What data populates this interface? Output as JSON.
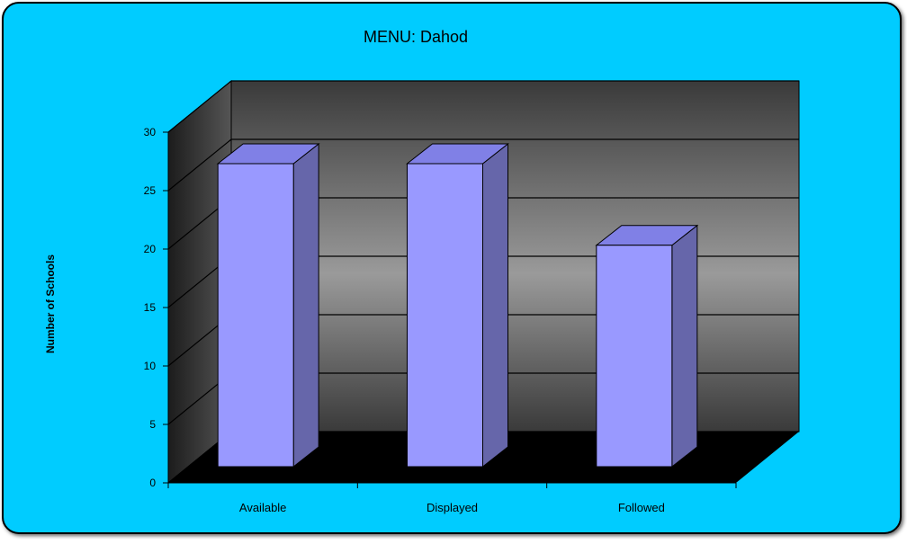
{
  "colors": {
    "background": "#00ccff",
    "bar_front": "#9999ff",
    "bar_side": "#6666aa",
    "bar_top": "#8080e6",
    "floor": "#000000"
  },
  "chart_data": {
    "type": "bar",
    "title": "MENU: Dahod",
    "xlabel": "",
    "ylabel": "Number of Schools",
    "categories": [
      "Available",
      "Displayed",
      "Followed"
    ],
    "values": [
      26,
      26,
      19
    ],
    "ylim": [
      0,
      30
    ],
    "yticks": [
      0,
      5,
      10,
      15,
      20,
      25,
      30
    ],
    "three_d": true,
    "grid": true,
    "legend": "none"
  }
}
